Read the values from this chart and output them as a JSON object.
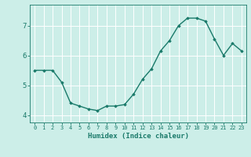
{
  "x": [
    0,
    1,
    2,
    3,
    4,
    5,
    6,
    7,
    8,
    9,
    10,
    11,
    12,
    13,
    14,
    15,
    16,
    17,
    18,
    19,
    20,
    21,
    22,
    23
  ],
  "y": [
    5.5,
    5.5,
    5.5,
    5.1,
    4.4,
    4.3,
    4.2,
    4.15,
    4.3,
    4.3,
    4.35,
    4.7,
    5.2,
    5.55,
    6.15,
    6.5,
    7.0,
    7.25,
    7.25,
    7.15,
    6.55,
    6.0,
    6.4,
    6.15
  ],
  "line_color": "#1a7a6a",
  "marker": "D",
  "marker_size": 1.8,
  "line_width": 1.0,
  "xlabel": "Humidex (Indice chaleur)",
  "bg_color": "#cceee8",
  "grid_color": "#ffffff",
  "tick_color": "#1a7a6a",
  "label_color": "#1a7a6a",
  "xlim": [
    -0.5,
    23.5
  ],
  "ylim": [
    3.75,
    7.7
  ],
  "yticks": [
    4,
    5,
    6,
    7
  ],
  "xticks": [
    0,
    1,
    2,
    3,
    4,
    5,
    6,
    7,
    8,
    9,
    10,
    11,
    12,
    13,
    14,
    15,
    16,
    17,
    18,
    19,
    20,
    21,
    22,
    23
  ],
  "xlabel_fontsize": 6.5,
  "xtick_fontsize": 5.0,
  "ytick_fontsize": 6.5
}
